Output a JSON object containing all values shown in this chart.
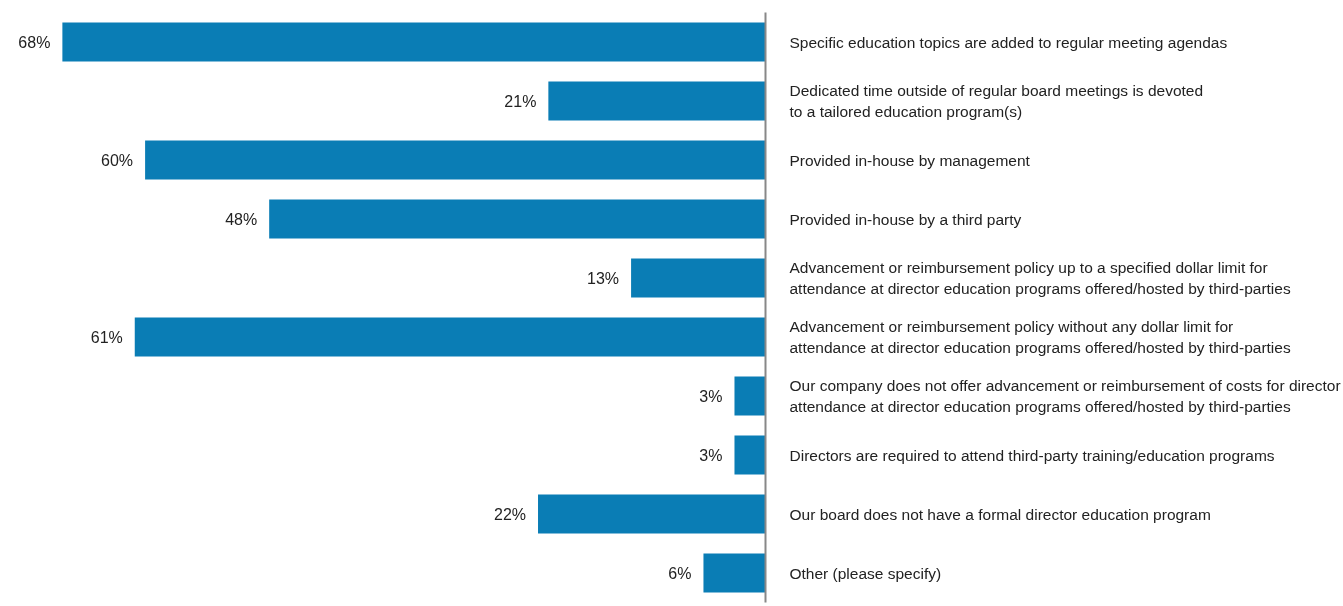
{
  "chart_data": {
    "type": "bar",
    "orientation": "horizontal",
    "categories": [
      "Specific education topics are added to regular meeting agendas",
      "Dedicated time outside of regular board meetings is devoted\nto a tailored education program(s)",
      "Provided in-house by management",
      "Provided in-house by a third party",
      "Advancement or reimbursement policy up to a specified dollar limit for\nattendance at director education programs offered/hosted by third-parties",
      "Advancement or reimbursement policy without any dollar limit for\nattendance at director education programs offered/hosted by third-parties",
      "Our company does not offer advancement or reimbursement of costs for director\nattendance at director education programs offered/hosted by third-parties",
      "Directors are required to attend third-party training/education programs",
      "Our board does not have a formal director education program",
      "Other (please specify)"
    ],
    "values": [
      68,
      21,
      60,
      48,
      13,
      61,
      3,
      3,
      22,
      6
    ],
    "color": "#0a7db5",
    "value_labels": [
      "68%",
      "21%",
      "60%",
      "48%",
      "13%",
      "61%",
      "3%",
      "3%",
      "22%",
      "6%"
    ],
    "tick_labels": "y",
    "grid": false
  }
}
